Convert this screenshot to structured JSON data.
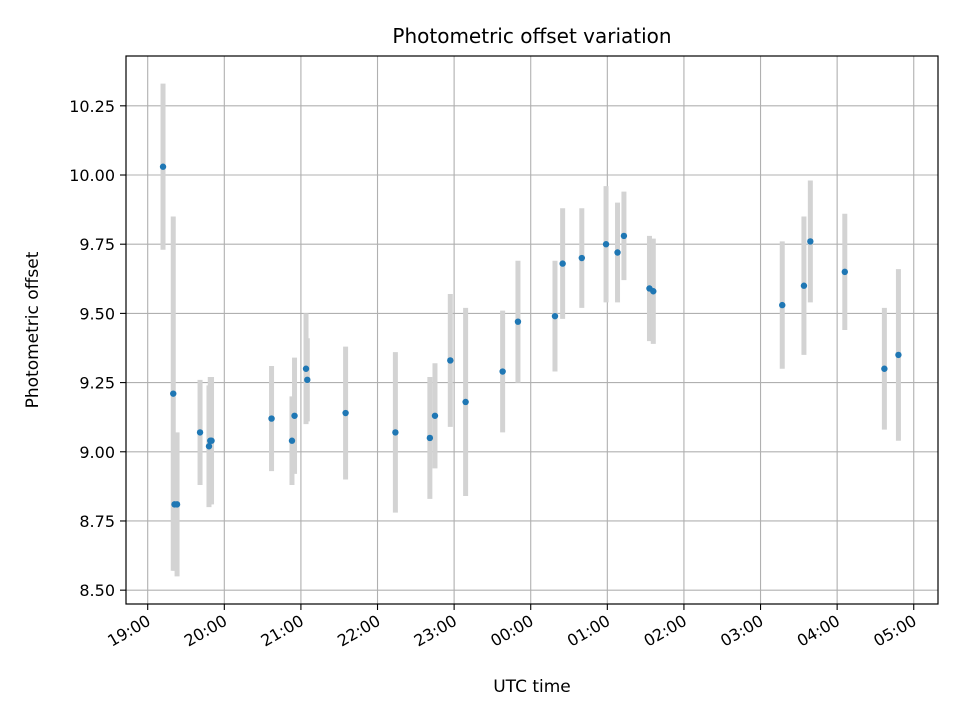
{
  "chart_data": {
    "type": "scatter",
    "title": "Photometric offset variation",
    "xlabel": "UTC time",
    "ylabel": "Photometric offset",
    "grid": true,
    "ylim": [
      8.45,
      10.43
    ],
    "xlim": [
      "18:43",
      "05:19"
    ],
    "x_ticks": [
      "19:00",
      "20:00",
      "21:00",
      "22:00",
      "23:00",
      "00:00",
      "01:00",
      "02:00",
      "03:00",
      "04:00",
      "05:00"
    ],
    "y_ticks": [
      8.5,
      8.75,
      9.0,
      9.25,
      9.5,
      9.75,
      10.0,
      10.25
    ],
    "y_tick_labels": [
      "8.50",
      "8.75",
      "9.00",
      "9.25",
      "9.50",
      "9.75",
      "10.00",
      "10.25"
    ],
    "marker_color": "#1f77b4",
    "errorbar_color": "#d3d3d3",
    "points": [
      {
        "time": "19:12",
        "y": 10.03,
        "err": 0.3
      },
      {
        "time": "19:20",
        "y": 9.21,
        "err": 0.64
      },
      {
        "time": "19:21",
        "y": 8.81,
        "err": 0.24
      },
      {
        "time": "19:23",
        "y": 8.81,
        "err": 0.26
      },
      {
        "time": "19:41",
        "y": 9.07,
        "err": 0.19
      },
      {
        "time": "19:48",
        "y": 9.02,
        "err": 0.22
      },
      {
        "time": "19:49",
        "y": 9.04,
        "err": 0.23
      },
      {
        "time": "19:50",
        "y": 9.04,
        "err": 0.23
      },
      {
        "time": "20:37",
        "y": 9.12,
        "err": 0.19
      },
      {
        "time": "20:53",
        "y": 9.04,
        "err": 0.16
      },
      {
        "time": "20:55",
        "y": 9.13,
        "err": 0.21
      },
      {
        "time": "21:04",
        "y": 9.3,
        "err": 0.2
      },
      {
        "time": "21:05",
        "y": 9.26,
        "err": 0.15
      },
      {
        "time": "21:35",
        "y": 9.14,
        "err": 0.24
      },
      {
        "time": "22:14",
        "y": 9.07,
        "err": 0.29
      },
      {
        "time": "22:41",
        "y": 9.05,
        "err": 0.22
      },
      {
        "time": "22:45",
        "y": 9.13,
        "err": 0.19
      },
      {
        "time": "22:57",
        "y": 9.33,
        "err": 0.24
      },
      {
        "time": "23:09",
        "y": 9.18,
        "err": 0.34
      },
      {
        "time": "23:38",
        "y": 9.29,
        "err": 0.22
      },
      {
        "time": "23:50",
        "y": 9.47,
        "err": 0.22
      },
      {
        "time": "00:19",
        "y": 9.49,
        "err": 0.2
      },
      {
        "time": "00:25",
        "y": 9.68,
        "err": 0.2
      },
      {
        "time": "00:40",
        "y": 9.7,
        "err": 0.18
      },
      {
        "time": "00:59",
        "y": 9.75,
        "err": 0.21
      },
      {
        "time": "01:08",
        "y": 9.72,
        "err": 0.18
      },
      {
        "time": "01:13",
        "y": 9.78,
        "err": 0.16
      },
      {
        "time": "01:33",
        "y": 9.59,
        "err": 0.19
      },
      {
        "time": "01:36",
        "y": 9.58,
        "err": 0.19
      },
      {
        "time": "03:17",
        "y": 9.53,
        "err": 0.23
      },
      {
        "time": "03:34",
        "y": 9.6,
        "err": 0.25
      },
      {
        "time": "03:39",
        "y": 9.76,
        "err": 0.22
      },
      {
        "time": "04:06",
        "y": 9.65,
        "err": 0.21
      },
      {
        "time": "04:37",
        "y": 9.3,
        "err": 0.22
      },
      {
        "time": "04:48",
        "y": 9.35,
        "err": 0.31
      }
    ]
  }
}
